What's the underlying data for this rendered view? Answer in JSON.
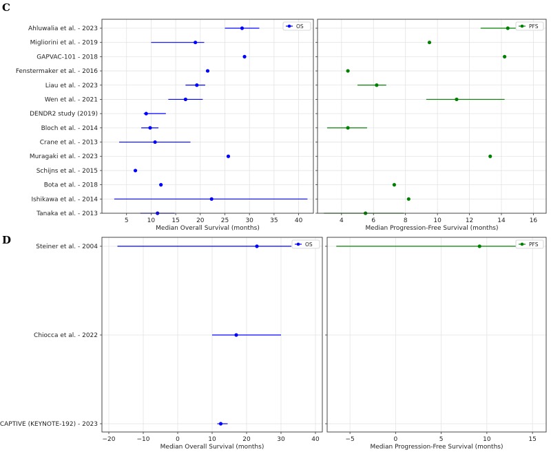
{
  "chart_data": [
    {
      "panel": "C",
      "type": "forest",
      "xlabel": "Median Overall Survival (months)",
      "xlim": [
        0,
        43
      ],
      "xticks": [
        5,
        10,
        15,
        20,
        25,
        30,
        35,
        40
      ],
      "grid": true,
      "legend": {
        "label": "OS",
        "placement": "top-right"
      },
      "color": "#0000ff",
      "studies": [
        {
          "label": "Ahluwalia et al. - 2023",
          "value": 28.5,
          "low": 25.0,
          "high": 32.0
        },
        {
          "label": "Migliorini et al. - 2019",
          "value": 19.0,
          "low": 10.0,
          "high": 20.8
        },
        {
          "label": "GAPVAC-101 - 2018",
          "value": 29.0,
          "low": null,
          "high": null
        },
        {
          "label": "Fenstermaker et al. - 2016",
          "value": 21.5,
          "low": null,
          "high": null
        },
        {
          "label": "Liau et al. - 2023",
          "value": 19.3,
          "low": 17.0,
          "high": 21.0
        },
        {
          "label": "Wen et al. - 2021",
          "value": 17.0,
          "low": 13.5,
          "high": 20.5
        },
        {
          "label": "DENDR2 study (2019)",
          "value": 9.0,
          "low": 8.5,
          "high": 13.0
        },
        {
          "label": "Bloch et al. - 2014",
          "value": 9.8,
          "low": 8.0,
          "high": 11.5
        },
        {
          "label": "Crane et al. - 2013",
          "value": 10.8,
          "low": 3.5,
          "high": 18.0
        },
        {
          "label": "Muragaki et al. - 2023",
          "value": 25.7,
          "low": null,
          "high": null
        },
        {
          "label": "Schijns et al. - 2015",
          "value": 6.8,
          "low": null,
          "high": null
        },
        {
          "label": "Bota et al. - 2018",
          "value": 12.0,
          "low": null,
          "high": null
        },
        {
          "label": "Ishikawa et al. - 2014",
          "value": 22.3,
          "low": 2.5,
          "high": 41.8
        },
        {
          "label": "Tanaka et al. - 2013",
          "value": 11.3,
          "low": 7.8,
          "high": 14.8
        }
      ]
    },
    {
      "panel": "C",
      "type": "forest",
      "xlabel": "Median Progression-Free Survival (months)",
      "xlim": [
        2.5,
        16.8
      ],
      "xticks": [
        4,
        6,
        8,
        10,
        12,
        14,
        16
      ],
      "grid": true,
      "legend": {
        "label": "PFS",
        "placement": "top-right"
      },
      "color": "#008000",
      "studies": [
        {
          "label": "Ahluwalia et al. - 2023",
          "value": 14.4,
          "low": 12.7,
          "high": 16.1
        },
        {
          "label": "Migliorini et al. - 2019",
          "value": 9.5,
          "low": null,
          "high": null
        },
        {
          "label": "GAPVAC-101 - 2018",
          "value": 14.2,
          "low": null,
          "high": null
        },
        {
          "label": "Fenstermaker et al. - 2016",
          "value": 4.4,
          "low": null,
          "high": null
        },
        {
          "label": "Liau et al. - 2023",
          "value": 6.2,
          "low": 5.0,
          "high": 6.8
        },
        {
          "label": "Wen et al. - 2021",
          "value": 11.2,
          "low": 9.3,
          "high": 14.2
        },
        {
          "label": "DENDR2 study (2019)",
          "value": null,
          "low": null,
          "high": null
        },
        {
          "label": "Bloch et al. - 2014",
          "value": 4.4,
          "low": 3.1,
          "high": 5.6
        },
        {
          "label": "Crane et al. - 2013",
          "value": null,
          "low": null,
          "high": null
        },
        {
          "label": "Muragaki et al. - 2023",
          "value": 13.3,
          "low": null,
          "high": null
        },
        {
          "label": "Schijns et al. - 2015",
          "value": null,
          "low": null,
          "high": null
        },
        {
          "label": "Bota et al. - 2018",
          "value": 7.3,
          "low": null,
          "high": null
        },
        {
          "label": "Ishikawa et al. - 2014",
          "value": 8.2,
          "low": null,
          "high": null
        },
        {
          "label": "Tanaka et al. - 2013",
          "value": 5.5,
          "low": 2.9,
          "high": 7.9
        }
      ]
    },
    {
      "panel": "D",
      "type": "forest",
      "xlabel": "Median Overall Survival (months)",
      "xlim": [
        -22,
        42
      ],
      "xticks": [
        -20,
        -10,
        0,
        10,
        20,
        30,
        40
      ],
      "grid": true,
      "legend": {
        "label": "OS",
        "placement": "top-right"
      },
      "color": "#0000ff",
      "studies": [
        {
          "label": "Steiner et al. - 2004",
          "value": 23.0,
          "low": -17.5,
          "high": 33.0
        },
        {
          "label": "Chiocca et al. - 2022",
          "value": 17.0,
          "low": 10.0,
          "high": 30.0
        },
        {
          "label": "CAPTIVE (KEYNOTE-192) - 2023",
          "value": 12.5,
          "low": 11.5,
          "high": 14.5
        }
      ]
    },
    {
      "panel": "D",
      "type": "forest",
      "xlabel": "Median Progression-Free Survival (months)",
      "xlim": [
        -7.5,
        16.5
      ],
      "xticks": [
        -5,
        0,
        5,
        10,
        15
      ],
      "grid": true,
      "legend": {
        "label": "PFS",
        "placement": "top-right"
      },
      "color": "#008000",
      "studies": [
        {
          "label": "Steiner et al. - 2004",
          "value": 9.2,
          "low": -6.5,
          "high": 15.5
        },
        {
          "label": "Chiocca et al. - 2022",
          "value": null,
          "low": null,
          "high": null
        },
        {
          "label": "CAPTIVE (KEYNOTE-192) - 2023",
          "value": null,
          "low": null,
          "high": null
        }
      ]
    }
  ],
  "panel_letters": [
    "C",
    "D"
  ]
}
